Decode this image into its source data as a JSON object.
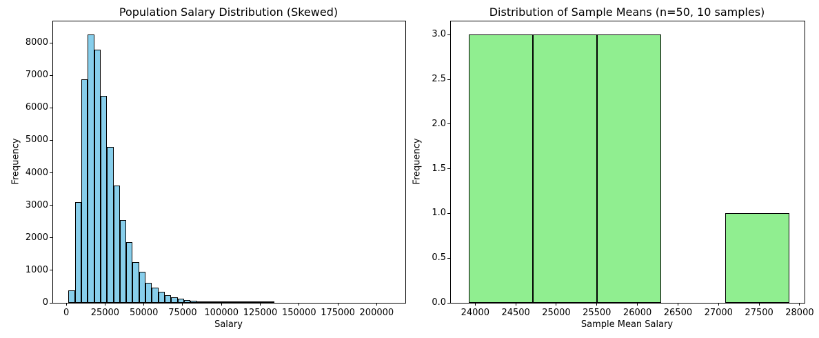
{
  "figure": {
    "background": "#ffffff",
    "text_color": "#000000",
    "spine_color": "#000000"
  },
  "chart_data": [
    {
      "type": "bar",
      "subtype": "histogram",
      "title": "Population Salary Distribution (Skewed)",
      "xlabel": "Salary",
      "ylabel": "Frequency",
      "bar_color": "#87CEEB",
      "edge_color": "#000000",
      "grid": false,
      "legend": false,
      "xlim": [
        -8500,
        218500
      ],
      "ylim": [
        0,
        8662
      ],
      "xticks": [
        0,
        25000,
        50000,
        75000,
        100000,
        125000,
        150000,
        175000,
        200000
      ],
      "xtick_labels": [
        "0",
        "25000",
        "50000",
        "75000",
        "100000",
        "125000",
        "150000",
        "175000",
        "200000"
      ],
      "yticks": [
        0,
        1000,
        2000,
        3000,
        4000,
        5000,
        6000,
        7000,
        8000
      ],
      "ytick_labels": [
        "0",
        "1000",
        "2000",
        "3000",
        "4000",
        "5000",
        "6000",
        "7000",
        "8000"
      ],
      "bin_start": 1400,
      "bin_width": 4140,
      "counts": [
        380,
        3100,
        6880,
        8250,
        7800,
        6360,
        4800,
        3600,
        2550,
        1870,
        1250,
        950,
        620,
        470,
        330,
        230,
        165,
        120,
        85,
        62,
        45,
        33,
        24,
        18,
        13,
        10,
        7,
        5,
        4,
        3,
        2,
        1,
        0,
        0,
        0,
        0,
        0,
        0,
        0,
        0,
        0,
        0,
        0,
        0,
        0,
        0,
        0,
        0,
        0,
        0
      ]
    },
    {
      "type": "bar",
      "subtype": "histogram",
      "title": "Distribution of Sample Means (n=50, 10 samples)",
      "xlabel": "Sample Mean Salary",
      "ylabel": "Frequency",
      "bar_color": "#90EE90",
      "edge_color": "#000000",
      "grid": false,
      "legend": false,
      "xlim": [
        23700,
        28060
      ],
      "ylim": [
        0,
        3.15
      ],
      "xticks": [
        24000,
        24500,
        25000,
        25500,
        26000,
        26500,
        27000,
        27500,
        28000
      ],
      "xtick_labels": [
        "24000",
        "24500",
        "25000",
        "25500",
        "26000",
        "26500",
        "27000",
        "27500",
        "28000"
      ],
      "yticks": [
        0,
        0.5,
        1,
        1.5,
        2,
        2.5,
        3
      ],
      "ytick_labels": [
        "0.0",
        "0.5",
        "1.0",
        "1.5",
        "2.0",
        "2.5",
        "3.0"
      ],
      "bin_edges": [
        23920,
        24710,
        25500,
        26290,
        27080,
        27875
      ],
      "counts": [
        3,
        3,
        3,
        0,
        1
      ]
    }
  ]
}
